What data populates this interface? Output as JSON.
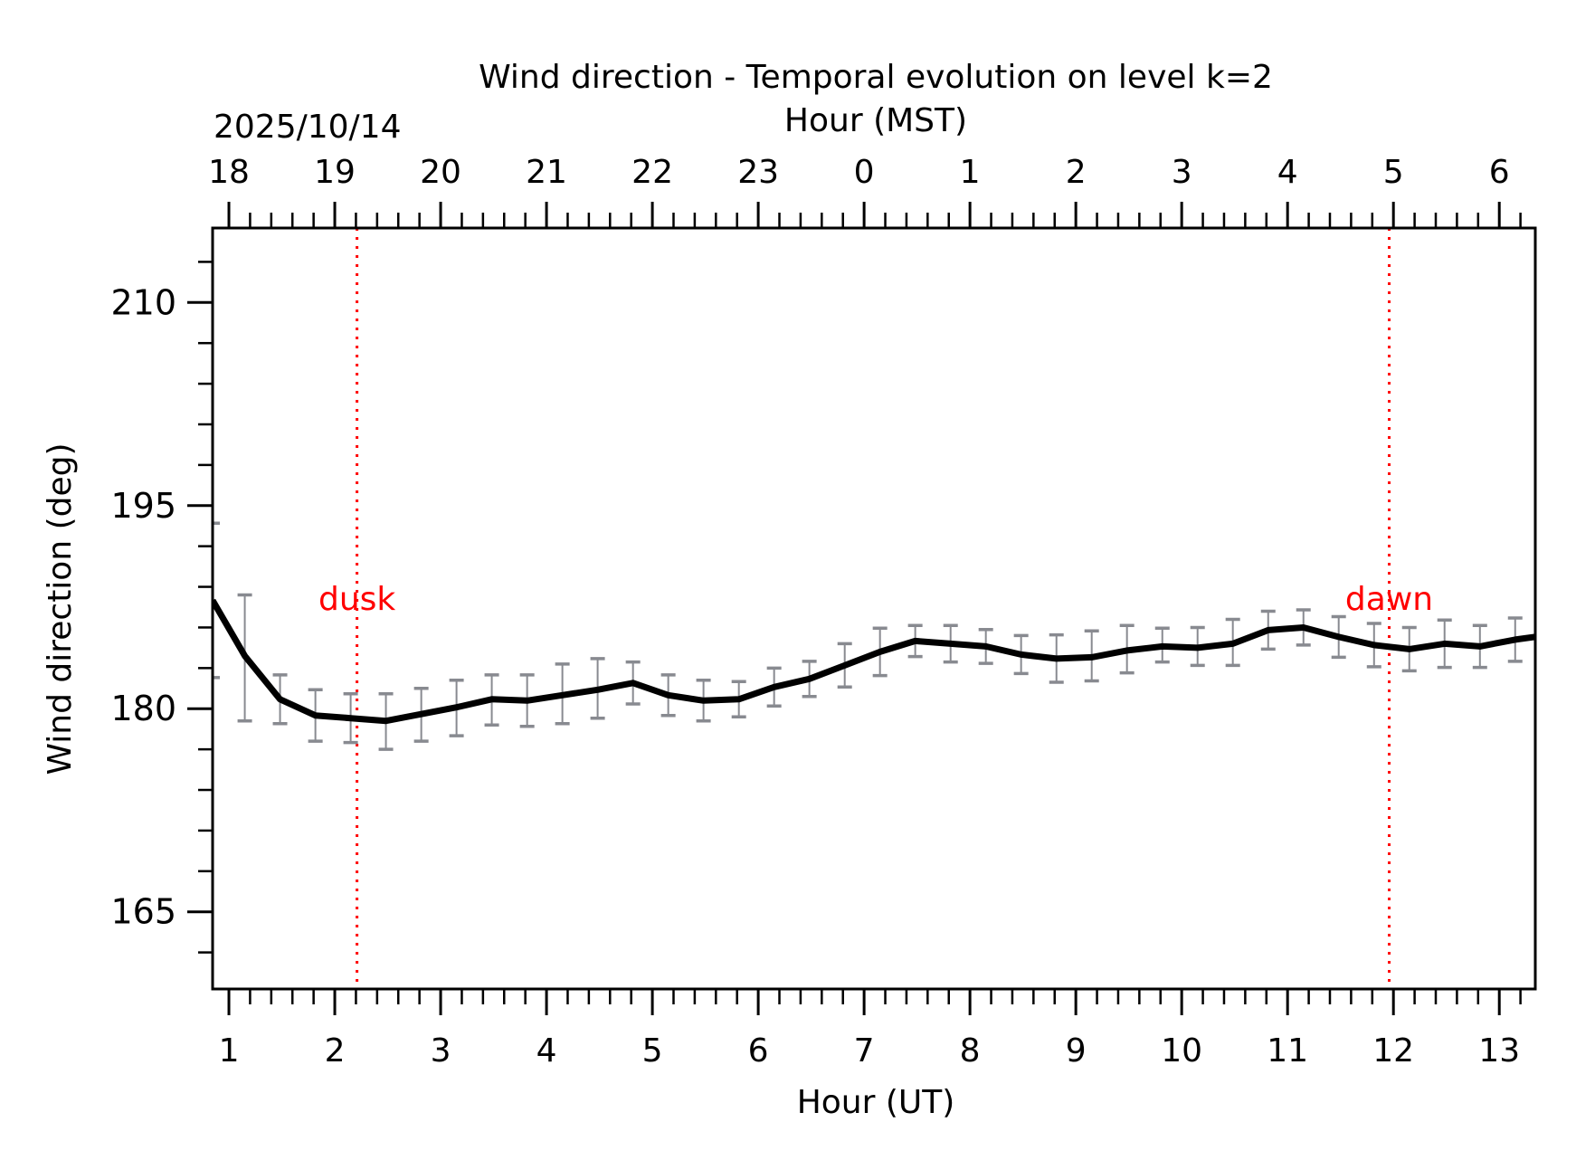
{
  "chart_data": {
    "type": "line",
    "title": "Wind direction - Temporal evolution on level k=2",
    "date_label": "2025/10/14",
    "xlabel": "Hour (UT)",
    "x2label": "Hour (MST)",
    "ylabel": "Wind direction (deg)",
    "xlim": [
      0.846,
      13.34
    ],
    "ylim": [
      159.3,
      215.5
    ],
    "grid": false,
    "x_ticks": [
      1,
      2,
      3,
      4,
      5,
      6,
      7,
      8,
      9,
      10,
      11,
      12,
      13
    ],
    "x_tick_labels": [
      "1",
      "2",
      "3",
      "4",
      "5",
      "6",
      "7",
      "8",
      "9",
      "10",
      "11",
      "12",
      "13"
    ],
    "x_minor_step": 0.2,
    "x2_ticks": [
      1,
      2,
      3,
      4,
      5,
      6,
      7,
      8,
      9,
      10,
      11,
      12,
      13
    ],
    "x2_tick_labels": [
      "18",
      "19",
      "20",
      "21",
      "22",
      "23",
      "0",
      "1",
      "2",
      "3",
      "4",
      "5",
      "6"
    ],
    "y_ticks": [
      165,
      180,
      195,
      210
    ],
    "y_tick_labels": [
      "165",
      "180",
      "195",
      "210"
    ],
    "y_minor_step": 3,
    "series": [
      {
        "name": "Wind direction",
        "color": "#000000",
        "x": [
          0.846,
          1.15,
          1.483,
          1.817,
          2.15,
          2.483,
          2.817,
          3.15,
          3.483,
          3.817,
          4.15,
          4.483,
          4.817,
          5.15,
          5.483,
          5.817,
          6.15,
          6.483,
          6.817,
          7.15,
          7.483,
          7.817,
          8.15,
          8.483,
          8.817,
          9.15,
          9.483,
          9.817,
          10.15,
          10.483,
          10.817,
          11.15,
          11.483,
          11.817,
          12.15,
          12.483,
          12.817,
          13.15,
          13.34
        ],
        "y": [
          188.0,
          183.9,
          180.7,
          179.5,
          179.3,
          179.1,
          179.6,
          180.1,
          180.7,
          180.6,
          181.0,
          181.4,
          181.9,
          181.0,
          180.6,
          180.7,
          181.6,
          182.2,
          183.2,
          184.2,
          185.0,
          184.8,
          184.6,
          184.0,
          183.7,
          183.8,
          184.3,
          184.6,
          184.5,
          184.8,
          185.8,
          186.0,
          185.3,
          184.7,
          184.4,
          184.8,
          184.6,
          185.1,
          185.3
        ]
      }
    ],
    "error_bars": {
      "color": "#888a90",
      "x": [
        0.846,
        1.15,
        1.483,
        1.817,
        2.15,
        2.483,
        2.817,
        3.15,
        3.483,
        3.817,
        4.15,
        4.483,
        4.817,
        5.15,
        5.483,
        5.817,
        6.15,
        6.483,
        6.817,
        7.15,
        7.483,
        7.817,
        8.15,
        8.483,
        8.817,
        9.15,
        9.483,
        9.817,
        10.15,
        10.483,
        10.817,
        11.15,
        11.483,
        11.817,
        12.15,
        12.483,
        12.817,
        13.15
      ],
      "center": [
        188.0,
        183.75,
        180.7,
        179.5,
        179.3,
        179.05,
        179.55,
        180.05,
        180.65,
        180.6,
        181.1,
        181.5,
        181.9,
        181.0,
        180.6,
        180.7,
        181.6,
        182.2,
        183.2,
        184.2,
        185.0,
        184.8,
        184.6,
        184.0,
        183.7,
        183.9,
        184.4,
        184.7,
        184.6,
        184.9,
        185.8,
        186.0,
        185.3,
        184.7,
        184.4,
        184.8,
        184.6,
        185.1
      ],
      "err": [
        5.7,
        4.65,
        1.8,
        1.9,
        1.8,
        2.05,
        1.95,
        2.05,
        1.85,
        1.9,
        2.2,
        2.2,
        1.55,
        1.5,
        1.5,
        1.3,
        1.4,
        1.3,
        1.6,
        1.75,
        1.15,
        1.35,
        1.25,
        1.4,
        1.75,
        1.85,
        1.75,
        1.25,
        1.4,
        1.7,
        1.4,
        1.3,
        1.5,
        1.6,
        1.6,
        1.75,
        1.55,
        1.6
      ]
    },
    "annotations": [
      {
        "text": "dusk",
        "x": 2.21,
        "color": "#ff0000",
        "label_y": 187.3
      },
      {
        "text": "dawn",
        "x": 11.96,
        "color": "#ff0000",
        "label_y": 187.3
      }
    ]
  }
}
